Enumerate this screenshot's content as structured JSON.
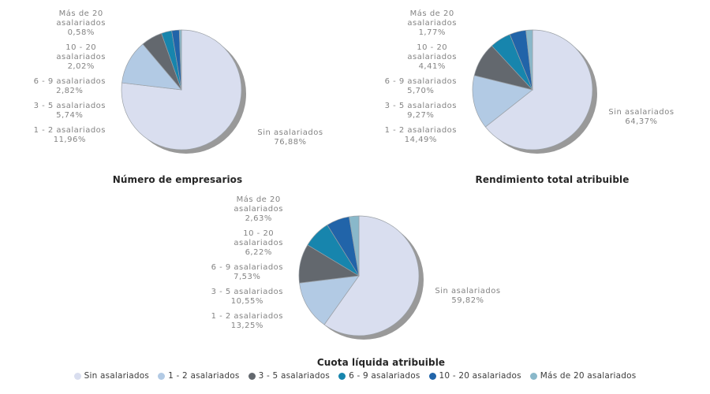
{
  "style": {
    "background": "#ffffff",
    "palette": [
      "#d9deef",
      "#b2cae4",
      "#63686e",
      "#1785ad",
      "#2164a9",
      "#89b8ca"
    ],
    "shadow_color": "#999999",
    "slice_border_color": "#9aa0a6",
    "label_color": "#848484",
    "title_color": "#262626",
    "legend_text_color": "#3c3c3c"
  },
  "chart_data": [
    {
      "type": "pie",
      "title": "Número de empresarios",
      "categories": [
        "Sin asalariados",
        "1 - 2 asalariados",
        "3 - 5 asalariados",
        "6 - 9 asalariados",
        "10 - 20 asalariados",
        "Más de 20 asalariados"
      ],
      "values": [
        76.88,
        11.96,
        5.74,
        2.82,
        2.02,
        0.58
      ],
      "value_labels": [
        "76,88%",
        "11,96%",
        "5,74%",
        "2,82%",
        "2,02%",
        "0,58%"
      ],
      "start_angle_deg": 0,
      "direction": "clockwise",
      "labels_position": "outside"
    },
    {
      "type": "pie",
      "title": "Rendimiento total atribuible",
      "categories": [
        "Sin asalariados",
        "1 - 2 asalariados",
        "3 - 5 asalariados",
        "6 - 9 asalariados",
        "10 - 20 asalariados",
        "Más de 20 asalariados"
      ],
      "values": [
        64.37,
        14.49,
        9.27,
        5.7,
        4.41,
        1.77
      ],
      "value_labels": [
        "64,37%",
        "14,49%",
        "9,27%",
        "5,70%",
        "4,41%",
        "1,77%"
      ],
      "start_angle_deg": 0,
      "direction": "clockwise",
      "labels_position": "outside"
    },
    {
      "type": "pie",
      "title": "Cuota líquida atribuible",
      "categories": [
        "Sin asalariados",
        "1 - 2 asalariados",
        "3 - 5 asalariados",
        "6 - 9 asalariados",
        "10 - 20 asalariados",
        "Más de 20 asalariados"
      ],
      "values": [
        59.82,
        13.25,
        10.55,
        7.53,
        6.22,
        2.63
      ],
      "value_labels": [
        "59,82%",
        "13,25%",
        "10,55%",
        "7,53%",
        "6,22%",
        "2,63%"
      ],
      "start_angle_deg": 0,
      "direction": "clockwise",
      "labels_position": "outside"
    }
  ],
  "category_display_lines": {
    "Sin asalariados": [
      "Sin asalariados"
    ],
    "1 - 2 asalariados": [
      "1 - 2 asalariados"
    ],
    "3 - 5 asalariados": [
      "3 - 5 asalariados"
    ],
    "6 - 9 asalariados": [
      "6 - 9 asalariados"
    ],
    "10 - 20 asalariados": [
      "10 - 20",
      "asalariados"
    ],
    "Más de 20 asalariados": [
      "Más de 20",
      "asalariados"
    ]
  },
  "legend": {
    "position": "bottom-center",
    "items": [
      {
        "label": "Sin asalariados",
        "color": "#d9deef"
      },
      {
        "label": "1 - 2 asalariados",
        "color": "#b2cae4"
      },
      {
        "label": "3 - 5 asalariados",
        "color": "#63686e"
      },
      {
        "label": "6 - 9 asalariados",
        "color": "#1785ad"
      },
      {
        "label": "10 - 20 asalariados",
        "color": "#2164a9"
      },
      {
        "label": "Más de 20 asalariados",
        "color": "#89b8ca"
      }
    ]
  }
}
